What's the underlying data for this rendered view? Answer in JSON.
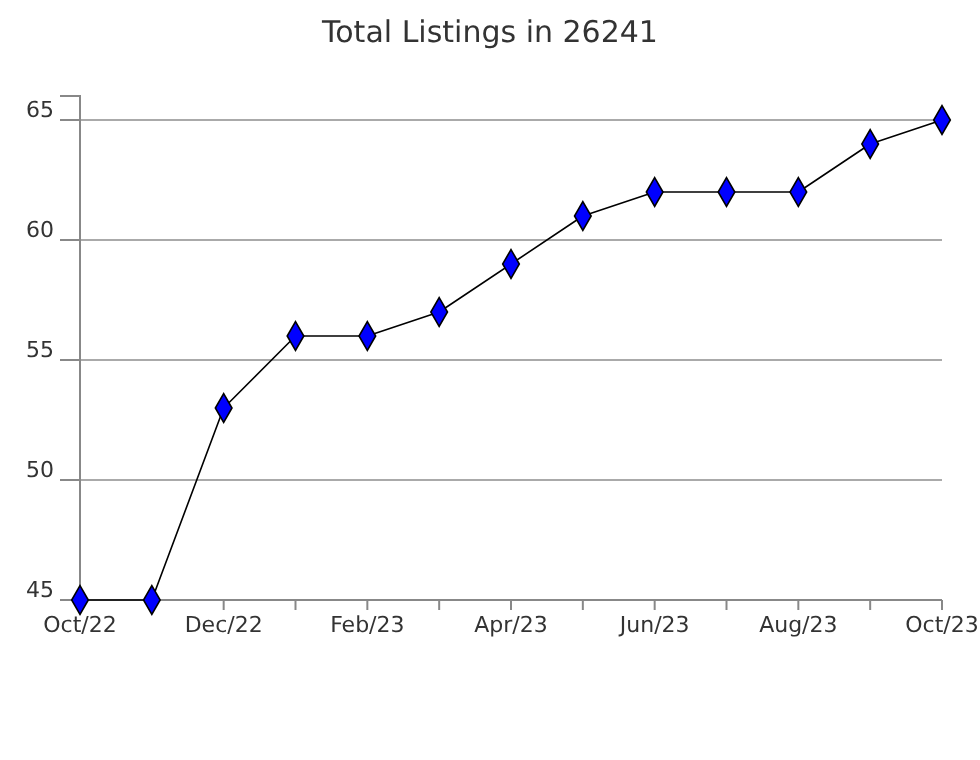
{
  "chart_data": {
    "type": "line",
    "title": "Total Listings in 26241",
    "categories": [
      "Oct/22",
      null,
      "Dec/22",
      null,
      "Feb/23",
      null,
      "Apr/23",
      null,
      "Jun/23",
      null,
      "Aug/23",
      null,
      "Oct/23"
    ],
    "series": [
      {
        "color": "#0000ff",
        "values": [
          45,
          45,
          53,
          56,
          56,
          57,
          59,
          61,
          62,
          62,
          62,
          64,
          65
        ]
      }
    ],
    "ylim": [
      45,
      66
    ],
    "yticks": [
      45,
      50,
      55,
      60,
      65
    ],
    "grid": "y",
    "marker": "diamond",
    "line_style": "solid"
  }
}
